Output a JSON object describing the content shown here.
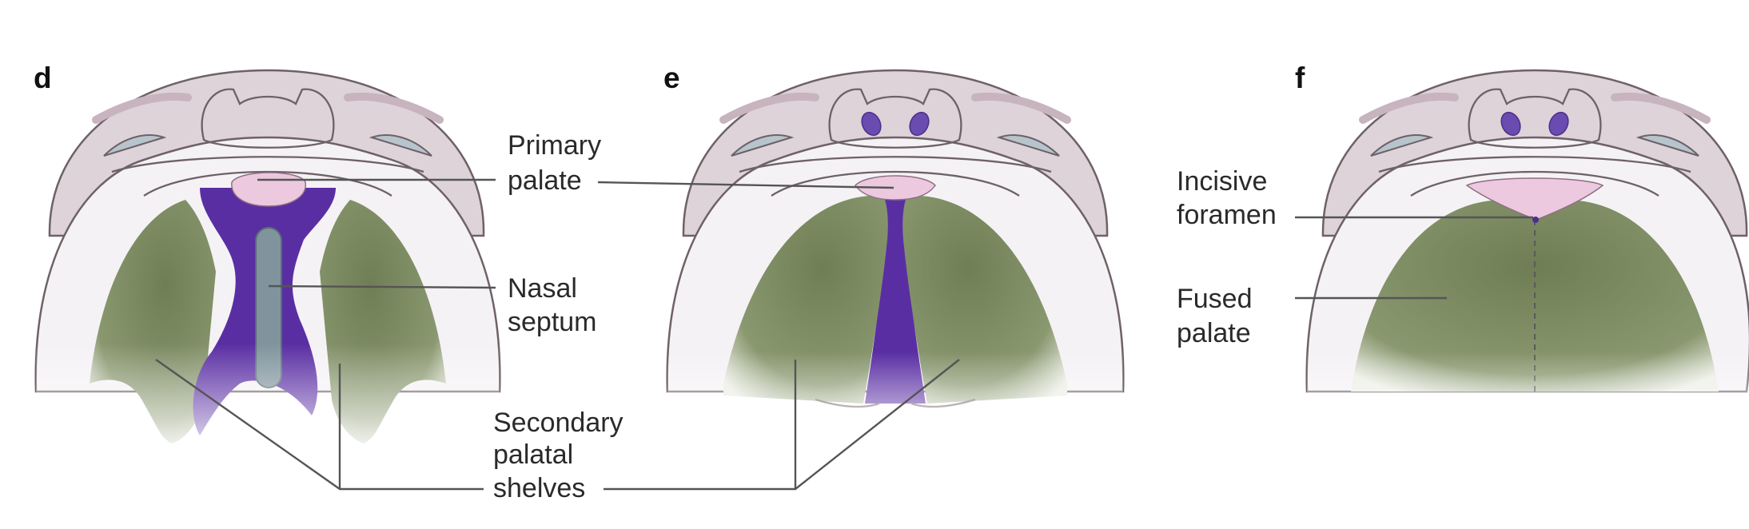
{
  "panels": {
    "d": {
      "letter": "d"
    },
    "e": {
      "letter": "e"
    },
    "f": {
      "letter": "f"
    }
  },
  "labels": {
    "primary_palate": [
      "Primary",
      "palate"
    ],
    "nasal_septum": [
      "Nasal",
      "septum"
    ],
    "secondary_shelves": [
      "Secondary",
      "palatal",
      "shelves"
    ],
    "incisive_foramen": [
      "Incisive",
      "foramen"
    ],
    "fused_palate": [
      "Fused",
      "palate"
    ]
  },
  "colors": {
    "palatal_shelf_green": "#7e8d62",
    "cleft_purple": "#5a2ea3",
    "nasal_septum_grey": "#7f949d",
    "primary_palate_pink": "#ecc9df",
    "head_mauve": "#ddd3d8"
  }
}
